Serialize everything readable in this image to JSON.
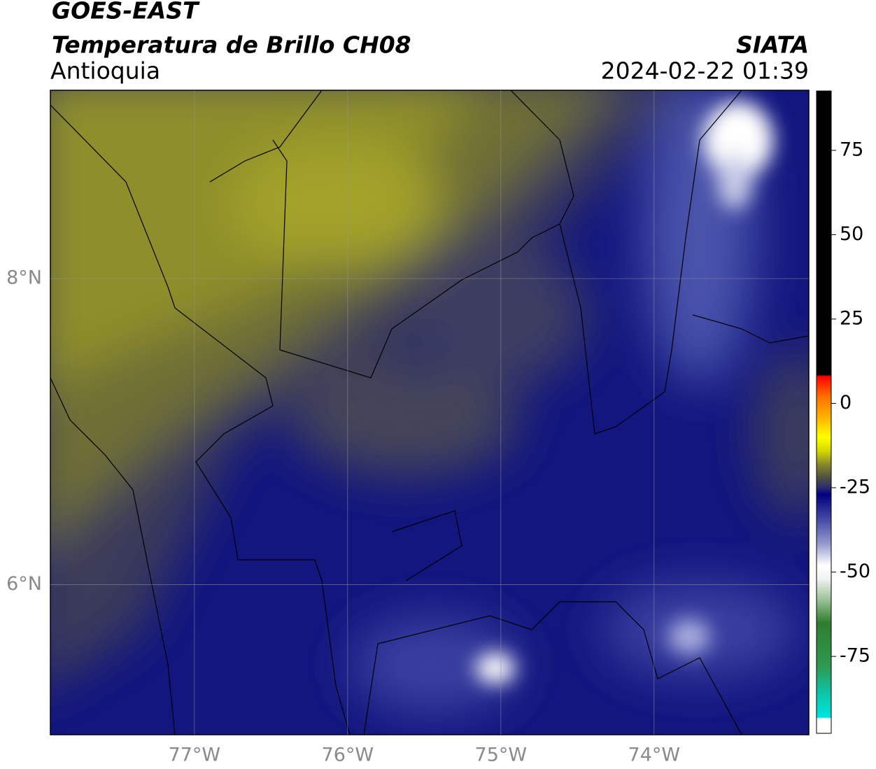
{
  "header": {
    "title": "GOES-EAST",
    "subtitle": "Temperatura de Brillo CH08",
    "region": "Antioquia",
    "source": "SIATA",
    "datetime": "2024-02-22 01:39"
  },
  "map": {
    "lonlim": [
      -77.94,
      -72.99
    ],
    "latlim": [
      5.02,
      9.23
    ],
    "lonticks": [
      {
        "value": -77,
        "label": "77°W"
      },
      {
        "value": -76,
        "label": "76°W"
      },
      {
        "value": -75,
        "label": "75°W"
      },
      {
        "value": -74,
        "label": "74°W"
      }
    ],
    "latticks": [
      {
        "value": 6,
        "label": "6°N"
      },
      {
        "value": 8,
        "label": "8°N"
      }
    ],
    "grid": true
  },
  "colorbar": {
    "lim": [
      -97.8,
      92.6
    ],
    "ticks": [
      -75,
      -50,
      -25,
      0,
      25,
      50,
      75
    ],
    "stops": [
      {
        "value": -97.8,
        "color": "#ffffff"
      },
      {
        "value": -93.5,
        "color": "#ffffff"
      },
      {
        "value": -93,
        "color": "#00e5e0"
      },
      {
        "value": -85,
        "color": "#10c0a0"
      },
      {
        "value": -78,
        "color": "#2e9a50"
      },
      {
        "value": -65,
        "color": "#2f7d2f"
      },
      {
        "value": -58,
        "color": "#9ec49a"
      },
      {
        "value": -52,
        "color": "#f2f2f2"
      },
      {
        "value": -48,
        "color": "#ffffff"
      },
      {
        "value": -42,
        "color": "#9aa0d0"
      },
      {
        "value": -35,
        "color": "#4a50a8"
      },
      {
        "value": -30,
        "color": "#1c1f8c"
      },
      {
        "value": -27,
        "color": "#000080"
      },
      {
        "value": -25,
        "color": "#2a2a70"
      },
      {
        "value": -22,
        "color": "#505040"
      },
      {
        "value": -18,
        "color": "#8a8a2e"
      },
      {
        "value": -14,
        "color": "#d8d800"
      },
      {
        "value": -10,
        "color": "#ffff00"
      },
      {
        "value": -4,
        "color": "#ffb000"
      },
      {
        "value": 2,
        "color": "#ff7000"
      },
      {
        "value": 8,
        "color": "#ff0000"
      },
      {
        "value": 8.5,
        "color": "#000000"
      },
      {
        "value": 92.6,
        "color": "#000000"
      }
    ]
  }
}
